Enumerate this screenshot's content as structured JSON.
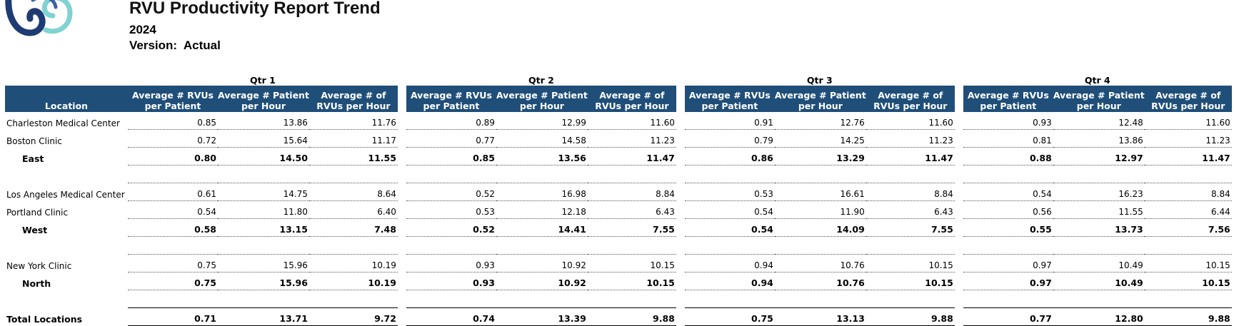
{
  "report": {
    "title": "RVU Productivity Report Trend",
    "year": "2024",
    "version": "Version:  Actual"
  },
  "header": {
    "location": "Location",
    "quarters": [
      "Qtr 1",
      "Qtr 2",
      "Qtr 3",
      "Qtr 4"
    ],
    "col1": [
      "Average # RVUs",
      "per Patient"
    ],
    "col2": [
      "Average # Patient",
      "per Hour"
    ],
    "col3": [
      "Average # of",
      "RVUs per Hour"
    ]
  },
  "rows": [
    {
      "type": "data",
      "label": "Charleston Medical Center",
      "values": [
        "0.85",
        "13.86",
        "11.76",
        "0.89",
        "12.99",
        "11.60",
        "0.91",
        "12.76",
        "11.60",
        "0.93",
        "12.48",
        "11.60"
      ]
    },
    {
      "type": "data",
      "label": "Boston Clinic",
      "values": [
        "0.72",
        "15.64",
        "11.17",
        "0.77",
        "14.58",
        "11.23",
        "0.79",
        "14.25",
        "11.23",
        "0.81",
        "13.86",
        "11.23"
      ]
    },
    {
      "type": "sub",
      "label": "East",
      "values": [
        "0.80",
        "14.50",
        "11.55",
        "0.85",
        "13.56",
        "11.47",
        "0.86",
        "13.29",
        "11.47",
        "0.88",
        "12.97",
        "11.47"
      ]
    },
    {
      "type": "blank"
    },
    {
      "type": "data",
      "label": "Los Angeles Medical Center",
      "values": [
        "0.61",
        "14.75",
        "8.64",
        "0.52",
        "16.98",
        "8.84",
        "0.53",
        "16.61",
        "8.84",
        "0.54",
        "16.23",
        "8.84"
      ]
    },
    {
      "type": "data",
      "label": "Portland Clinic",
      "values": [
        "0.54",
        "11.80",
        "6.40",
        "0.53",
        "12.18",
        "6.43",
        "0.54",
        "11.90",
        "6.43",
        "0.56",
        "11.55",
        "6.44"
      ]
    },
    {
      "type": "sub",
      "label": "West",
      "values": [
        "0.58",
        "13.15",
        "7.48",
        "0.52",
        "14.41",
        "7.55",
        "0.54",
        "14.09",
        "7.55",
        "0.55",
        "13.73",
        "7.56"
      ]
    },
    {
      "type": "blank"
    },
    {
      "type": "data",
      "label": "New York Clinic",
      "values": [
        "0.75",
        "15.96",
        "10.19",
        "0.93",
        "10.92",
        "10.15",
        "0.94",
        "10.76",
        "10.15",
        "0.97",
        "10.49",
        "10.15"
      ]
    },
    {
      "type": "sub",
      "label": "North",
      "values": [
        "0.75",
        "15.96",
        "10.19",
        "0.93",
        "10.92",
        "10.15",
        "0.94",
        "10.76",
        "10.15",
        "0.97",
        "10.49",
        "10.15"
      ]
    },
    {
      "type": "blank2"
    },
    {
      "type": "total",
      "label": "Total Locations",
      "values": [
        "0.71",
        "13.71",
        "9.72",
        "0.74",
        "13.39",
        "9.88",
        "0.75",
        "13.13",
        "9.88",
        "0.77",
        "12.80",
        "9.88"
      ]
    }
  ],
  "colors": {
    "header_bg": "#1F4E79",
    "header_text": "#FFFFFF",
    "logo_dark": "#1F3B73",
    "logo_light": "#7FD3D2"
  }
}
